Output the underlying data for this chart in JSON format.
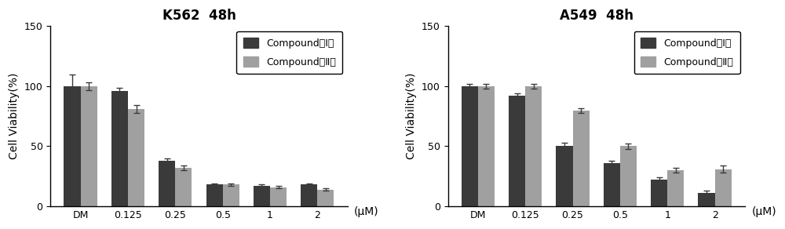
{
  "chart1": {
    "title": "K562  48h",
    "categories": [
      "DM",
      "0.125",
      "0.25",
      "0.5",
      "1",
      "2"
    ],
    "compound1_values": [
      100,
      96,
      38,
      18,
      17,
      18
    ],
    "compound2_values": [
      100,
      81,
      32,
      18,
      16,
      14
    ],
    "compound1_errors": [
      10,
      3,
      2,
      1,
      1,
      1
    ],
    "compound2_errors": [
      3,
      3,
      2,
      1,
      1,
      1
    ]
  },
  "chart2": {
    "title": "A549  48h",
    "categories": [
      "DM",
      "0.125",
      "0.25",
      "0.5",
      "1",
      "2"
    ],
    "compound1_values": [
      100,
      92,
      50,
      36,
      22,
      11
    ],
    "compound2_values": [
      100,
      100,
      80,
      50,
      30,
      31
    ],
    "compound1_errors": [
      2,
      2,
      3,
      2,
      2,
      2
    ],
    "compound2_errors": [
      2,
      2,
      2,
      2,
      2,
      3
    ]
  },
  "bar_width": 0.35,
  "color_compound1": "#3a3a3a",
  "color_compound2": "#a0a0a0",
  "ylabel": "Cell Viability(%)",
  "xlabel_unit": "(μM)",
  "ylim": [
    0,
    150
  ],
  "yticks": [
    0,
    50,
    100,
    150
  ],
  "legend_label1": "Compound（Ⅰ）",
  "legend_label2": "Compound（Ⅱ）",
  "title_fontsize": 12,
  "label_fontsize": 10,
  "tick_fontsize": 9,
  "legend_fontsize": 9,
  "bg_color": "#ffffff",
  "capsize": 3
}
